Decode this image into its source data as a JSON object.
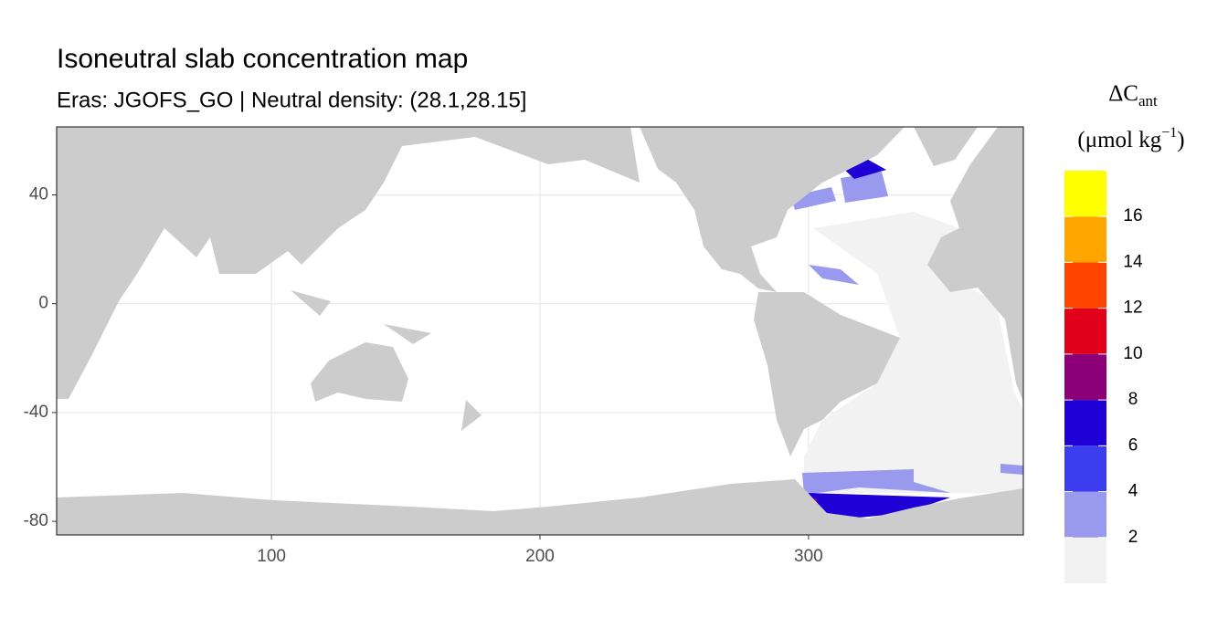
{
  "chart_data": {
    "type": "map",
    "title": "Isoneutral slab concentration map",
    "subtitle": "Eras: JGOFS_GO | Neutral density: (28.1,28.15]",
    "xlim": [
      20,
      380
    ],
    "ylim": [
      -85,
      65
    ],
    "xticks": [
      100,
      200,
      300
    ],
    "yticks": [
      -80,
      -40,
      0,
      40
    ],
    "grid": true,
    "land_color": "#cccccc",
    "legend": {
      "title": "ΔC",
      "title_subscript": "ant",
      "unit": "(μmol kg",
      "unit_superscript": "−1",
      "unit_close": ")",
      "limits": [
        0,
        18
      ],
      "breaks": [
        2,
        4,
        6,
        8,
        10,
        12,
        14,
        16
      ],
      "colors": [
        "#f2f2f2",
        "#9999ee",
        "#3d3df0",
        "#1f00d6",
        "#8b0077",
        "#e0001a",
        "#ff4500",
        "#ffa500",
        "#ffff00"
      ]
    }
  }
}
